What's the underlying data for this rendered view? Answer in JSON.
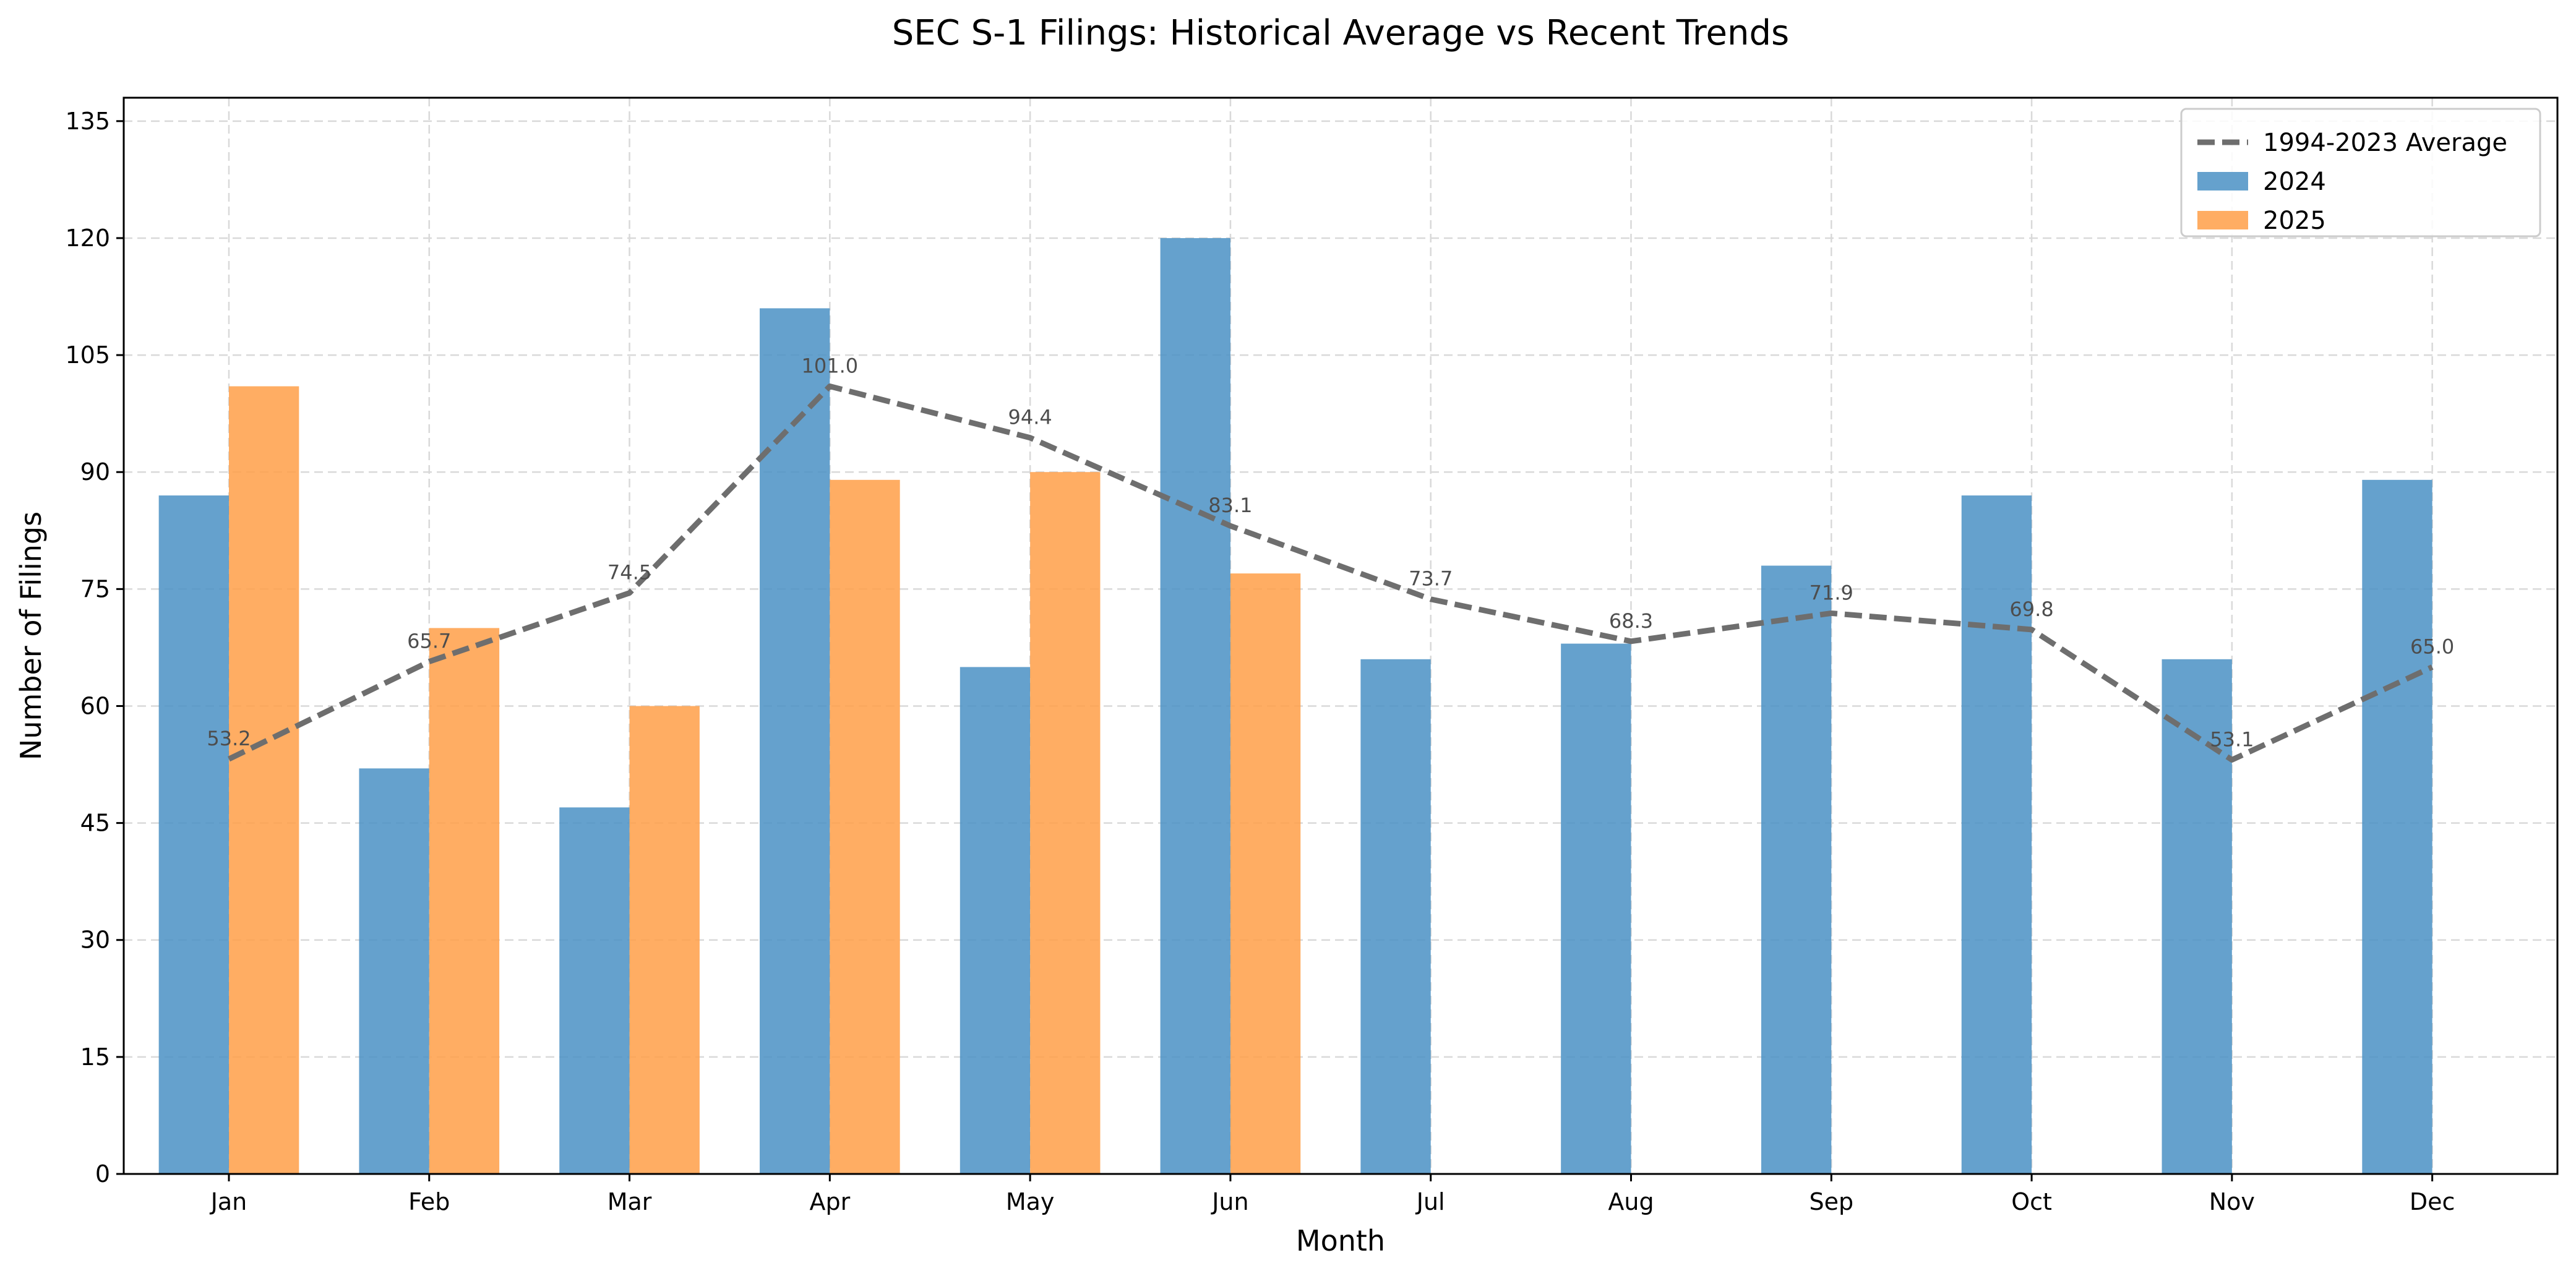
{
  "chart_data": {
    "type": "bar",
    "title": "SEC S-1 Filings: Historical Average vs Recent Trends",
    "xlabel": "Month",
    "ylabel": "Number of Filings",
    "ylim": [
      0,
      138
    ],
    "yticks": [
      0,
      15,
      30,
      45,
      60,
      75,
      90,
      105,
      120,
      135
    ],
    "grid": true,
    "legend_position": "top-right",
    "categories": [
      "Jan",
      "Feb",
      "Mar",
      "Apr",
      "May",
      "Jun",
      "Jul",
      "Aug",
      "Sep",
      "Oct",
      "Nov",
      "Dec"
    ],
    "series": [
      {
        "name": "2024",
        "kind": "bar",
        "color": "#4a90c4",
        "values": [
          87,
          52,
          47,
          111,
          65,
          120,
          66,
          68,
          78,
          87,
          66,
          89
        ]
      },
      {
        "name": "2025",
        "kind": "bar",
        "color": "#ff9f48",
        "values": [
          101,
          70,
          60,
          89,
          90,
          77,
          null,
          null,
          null,
          null,
          null,
          null
        ]
      },
      {
        "name": "1994-2023 Average",
        "kind": "line",
        "style": "dashed",
        "color": "#6e6e6e",
        "values": [
          53.2,
          65.7,
          74.5,
          101.0,
          94.4,
          83.1,
          73.7,
          68.3,
          71.9,
          69.8,
          53.1,
          65.0
        ],
        "value_labels": [
          "53.2",
          "65.7",
          "74.5",
          "101.0",
          "94.4",
          "83.1",
          "73.7",
          "68.3",
          "71.9",
          "69.8",
          "53.1",
          "65.0"
        ]
      }
    ],
    "legend_order": [
      "1994-2023 Average",
      "2024",
      "2025"
    ]
  }
}
